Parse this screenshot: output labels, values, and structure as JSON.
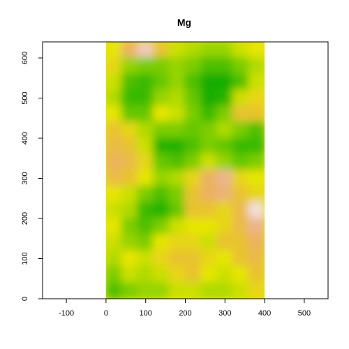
{
  "chart_data": {
    "type": "heatmap",
    "title": "Mg",
    "xlabel": "",
    "ylabel": "",
    "xlim": [
      -160,
      560
    ],
    "ylim": [
      0,
      640
    ],
    "x_ticks": [
      -100,
      0,
      100,
      200,
      300,
      400,
      500
    ],
    "y_ticks": [
      0,
      100,
      200,
      300,
      400,
      500,
      600
    ],
    "x_tick_labels": [
      "-100",
      "0",
      "100",
      "200",
      "300",
      "400",
      "500"
    ],
    "y_tick_labels": [
      "0",
      "100",
      "200",
      "300",
      "400",
      "500",
      "600"
    ],
    "grid": false,
    "legend": "none",
    "raster_extent": {
      "x": [
        0,
        400
      ],
      "y": [
        0,
        640
      ]
    },
    "colormap": "terrain.colors",
    "palette": [
      "#00a600",
      "#24b300",
      "#4dc000",
      "#7ccd00",
      "#b0da00",
      "#e6e600",
      "#e8c32e",
      "#ebb25e",
      "#edb48e",
      "#f0c9c0",
      "#f2f2f2"
    ],
    "grid_cols_x": [
      20,
      60,
      100,
      140,
      180,
      220,
      260,
      300,
      340,
      380
    ],
    "grid_rows_y": [
      20,
      60,
      100,
      140,
      180,
      220,
      260,
      300,
      340,
      380,
      420,
      460,
      500,
      540,
      580,
      620
    ],
    "value_grid_note": "values 0-1; row 0 = top (y=620)",
    "values": [
      [
        0.5,
        0.7,
        0.9,
        0.6,
        0.45,
        0.4,
        0.35,
        0.35,
        0.45,
        0.5
      ],
      [
        0.55,
        0.35,
        0.3,
        0.3,
        0.35,
        0.3,
        0.2,
        0.2,
        0.3,
        0.4
      ],
      [
        0.45,
        0.2,
        0.15,
        0.25,
        0.35,
        0.2,
        0.05,
        0.05,
        0.2,
        0.45
      ],
      [
        0.4,
        0.15,
        0.15,
        0.35,
        0.4,
        0.25,
        0.05,
        0.1,
        0.45,
        0.55
      ],
      [
        0.5,
        0.25,
        0.25,
        0.5,
        0.45,
        0.3,
        0.15,
        0.3,
        0.6,
        0.6
      ],
      [
        0.6,
        0.55,
        0.4,
        0.3,
        0.3,
        0.25,
        0.3,
        0.4,
        0.3,
        0.2
      ],
      [
        0.65,
        0.6,
        0.45,
        0.1,
        0.1,
        0.2,
        0.3,
        0.25,
        0.15,
        0.15
      ],
      [
        0.7,
        0.65,
        0.55,
        0.25,
        0.2,
        0.3,
        0.45,
        0.35,
        0.25,
        0.3
      ],
      [
        0.65,
        0.6,
        0.5,
        0.35,
        0.4,
        0.55,
        0.7,
        0.8,
        0.55,
        0.5
      ],
      [
        0.5,
        0.45,
        0.3,
        0.2,
        0.3,
        0.6,
        0.7,
        0.75,
        0.6,
        0.55
      ],
      [
        0.45,
        0.4,
        0.15,
        0.1,
        0.25,
        0.6,
        0.6,
        0.55,
        0.65,
        0.95
      ],
      [
        0.5,
        0.3,
        0.2,
        0.3,
        0.45,
        0.5,
        0.5,
        0.55,
        0.65,
        0.8
      ],
      [
        0.45,
        0.35,
        0.3,
        0.5,
        0.55,
        0.55,
        0.45,
        0.6,
        0.6,
        0.7
      ],
      [
        0.4,
        0.5,
        0.45,
        0.55,
        0.6,
        0.6,
        0.55,
        0.5,
        0.6,
        0.65
      ],
      [
        0.3,
        0.45,
        0.4,
        0.45,
        0.55,
        0.6,
        0.5,
        0.45,
        0.5,
        0.6
      ],
      [
        0.2,
        0.3,
        0.35,
        0.35,
        0.45,
        0.45,
        0.4,
        0.4,
        0.45,
        0.55
      ]
    ]
  }
}
